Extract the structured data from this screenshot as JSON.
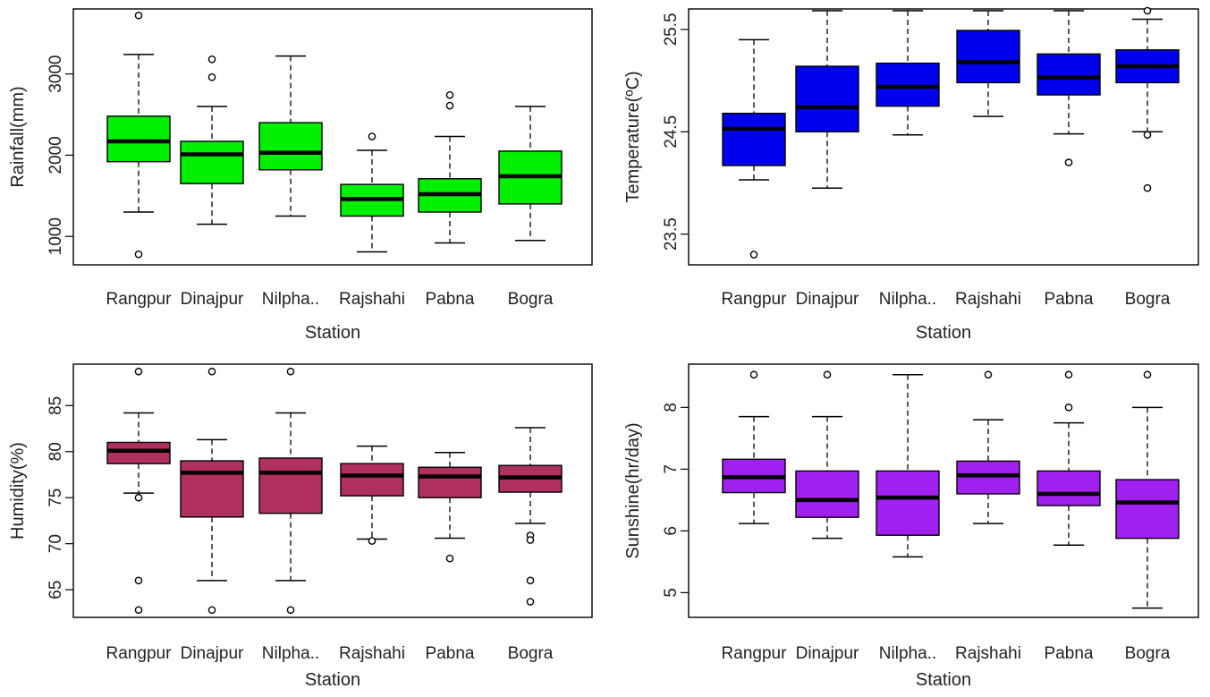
{
  "chart_data": [
    {
      "type": "boxplot",
      "ylabel": "Rainfall(mm)",
      "xlabel": "Station",
      "categories": [
        "Rangpur",
        "Dinajpur",
        "Nilpha..",
        "Rajshahi",
        "Pabna",
        "Bogra"
      ],
      "ylim": [
        650,
        3800
      ],
      "yticks": [
        1000,
        2000,
        3000
      ],
      "color": "#00ee00",
      "boxes": [
        {
          "whislo": 1300,
          "q1": 1920,
          "med": 2170,
          "q3": 2480,
          "whishi": 3240,
          "outliers": [
            3720,
            780
          ]
        },
        {
          "whislo": 1150,
          "q1": 1650,
          "med": 2010,
          "q3": 2170,
          "whishi": 2600,
          "outliers": [
            3180,
            2960
          ]
        },
        {
          "whislo": 1250,
          "q1": 1820,
          "med": 2030,
          "q3": 2400,
          "whishi": 3220,
          "outliers": []
        },
        {
          "whislo": 810,
          "q1": 1250,
          "med": 1460,
          "q3": 1640,
          "whishi": 2060,
          "outliers": [
            2230
          ]
        },
        {
          "whislo": 920,
          "q1": 1300,
          "med": 1520,
          "q3": 1710,
          "whishi": 2230,
          "outliers": [
            2740,
            2610
          ]
        },
        {
          "whislo": 950,
          "q1": 1400,
          "med": 1740,
          "q3": 2050,
          "whishi": 2600,
          "outliers": []
        }
      ]
    },
    {
      "type": "boxplot",
      "ylabel": "Temperature(ºC)",
      "xlabel": "Station",
      "categories": [
        "Rangpur",
        "Dinajpur",
        "Nilpha..",
        "Rajshahi",
        "Pabna",
        "Bogra"
      ],
      "ylim": [
        23.2,
        25.7
      ],
      "yticks": [
        23.5,
        24.5,
        25.5
      ],
      "color": "#0000ee",
      "boxes": [
        {
          "whislo": 24.03,
          "q1": 24.17,
          "med": 24.53,
          "q3": 24.68,
          "whishi": 25.4,
          "outliers": [
            23.3
          ]
        },
        {
          "whislo": 23.95,
          "q1": 24.5,
          "med": 24.74,
          "q3": 25.14,
          "whishi": 26.0,
          "outliers": []
        },
        {
          "whislo": 24.47,
          "q1": 24.75,
          "med": 24.94,
          "q3": 25.17,
          "whishi": 25.75,
          "outliers": []
        },
        {
          "whislo": 24.65,
          "q1": 24.98,
          "med": 25.18,
          "q3": 25.49,
          "whishi": 25.98,
          "outliers": []
        },
        {
          "whislo": 24.48,
          "q1": 24.86,
          "med": 25.03,
          "q3": 25.26,
          "whishi": 25.75,
          "outliers": [
            24.2
          ]
        },
        {
          "whislo": 24.5,
          "q1": 24.98,
          "med": 25.14,
          "q3": 25.3,
          "whishi": 25.6,
          "outliers": [
            25.93,
            24.47,
            23.95
          ]
        }
      ]
    },
    {
      "type": "boxplot",
      "ylabel": "Humidity(%)",
      "xlabel": "Station",
      "categories": [
        "Rangpur",
        "Dinajpur",
        "Nilpha..",
        "Rajshahi",
        "Pabna",
        "Bogra"
      ],
      "ylim": [
        62,
        89.5
      ],
      "yticks": [
        65,
        70,
        75,
        80,
        85
      ],
      "color": "#b03060",
      "boxes": [
        {
          "whislo": 75.5,
          "q1": 78.7,
          "med": 80.1,
          "q3": 81.0,
          "whishi": 84.2,
          "outliers": [
            88.7,
            75.0,
            66.0,
            62.8
          ]
        },
        {
          "whislo": 66.0,
          "q1": 72.9,
          "med": 77.7,
          "q3": 79.0,
          "whishi": 81.3,
          "outliers": [
            88.7,
            62.8
          ]
        },
        {
          "whislo": 66.0,
          "q1": 73.3,
          "med": 77.7,
          "q3": 79.3,
          "whishi": 84.2,
          "outliers": [
            88.7,
            62.8
          ]
        },
        {
          "whislo": 70.5,
          "q1": 75.2,
          "med": 77.4,
          "q3": 78.7,
          "whishi": 80.6,
          "outliers": [
            70.3
          ]
        },
        {
          "whislo": 70.6,
          "q1": 75.0,
          "med": 77.3,
          "q3": 78.3,
          "whishi": 79.9,
          "outliers": [
            68.4
          ]
        },
        {
          "whislo": 72.2,
          "q1": 75.6,
          "med": 77.2,
          "q3": 78.5,
          "whishi": 82.6,
          "outliers": [
            70.9,
            70.4,
            66.0,
            63.7
          ]
        }
      ]
    },
    {
      "type": "boxplot",
      "ylabel": "Sunshine(hr/day)",
      "xlabel": "Station",
      "categories": [
        "Rangpur",
        "Dinajpur",
        "Nilpha..",
        "Rajshahi",
        "Pabna",
        "Bogra"
      ],
      "ylim": [
        4.6,
        8.7
      ],
      "yticks": [
        5,
        6,
        7,
        8
      ],
      "color": "#a020f0",
      "boxes": [
        {
          "whislo": 6.12,
          "q1": 6.62,
          "med": 6.87,
          "q3": 7.16,
          "whishi": 7.85,
          "outliers": [
            8.53
          ]
        },
        {
          "whislo": 5.88,
          "q1": 6.22,
          "med": 6.5,
          "q3": 6.97,
          "whishi": 7.85,
          "outliers": [
            8.53
          ]
        },
        {
          "whislo": 5.58,
          "q1": 5.93,
          "med": 6.54,
          "q3": 6.97,
          "whishi": 8.53,
          "outliers": []
        },
        {
          "whislo": 6.12,
          "q1": 6.6,
          "med": 6.9,
          "q3": 7.13,
          "whishi": 7.8,
          "outliers": [
            8.53
          ]
        },
        {
          "whislo": 5.77,
          "q1": 6.41,
          "med": 6.6,
          "q3": 6.97,
          "whishi": 7.75,
          "outliers": [
            8.53,
            8.0
          ]
        },
        {
          "whislo": 4.75,
          "q1": 5.88,
          "med": 6.46,
          "q3": 6.83,
          "whishi": 8.0,
          "outliers": [
            8.53
          ]
        }
      ]
    }
  ]
}
